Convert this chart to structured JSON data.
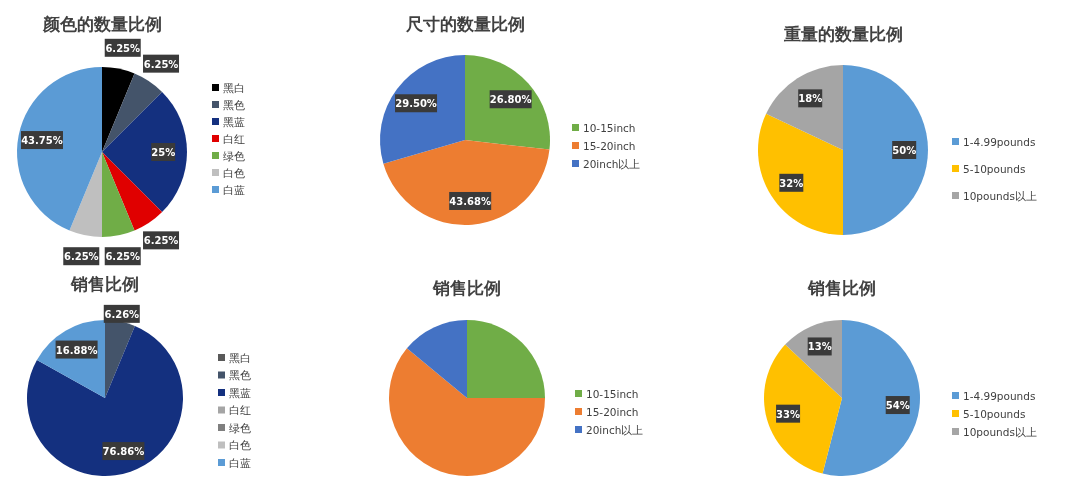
{
  "chart_data": [
    {
      "type": "pie",
      "title": "颜色的数量比例",
      "categories": [
        "黑白",
        "黑色",
        "黑蓝",
        "白红",
        "绿色",
        "白色",
        "白蓝"
      ],
      "values": [
        6.25,
        6.25,
        25,
        6.25,
        6.25,
        6.25,
        43.75
      ],
      "colors": [
        "#000000",
        "#44546a",
        "#14307f",
        "#e00000",
        "#70ad47",
        "#bfbfbf",
        "#5b9bd5"
      ],
      "value_labels": [
        "6.25%",
        "6.25%",
        "25%",
        "6.25%",
        "6.25%",
        "6.25%",
        "43.75%"
      ],
      "legend": "right"
    },
    {
      "type": "pie",
      "title": "尺寸的数量比例",
      "categories": [
        "10-15inch",
        "15-20inch",
        "20inch以上"
      ],
      "values": [
        26.8,
        43.68,
        29.5
      ],
      "colors": [
        "#70ad47",
        "#ed7d31",
        "#4472c4"
      ],
      "value_labels": [
        "26.80%",
        "43.68%",
        "29.50%"
      ],
      "legend": "right"
    },
    {
      "type": "pie",
      "title": "重量的数量比例",
      "categories": [
        "1-4.99pounds",
        "5-10pounds",
        "10pounds以上"
      ],
      "values": [
        50,
        32,
        18
      ],
      "colors": [
        "#5b9bd5",
        "#ffc000",
        "#a5a5a5"
      ],
      "value_labels": [
        "50%",
        "32%",
        "18%"
      ],
      "legend": "right"
    },
    {
      "type": "pie",
      "title": "销售比例",
      "categories": [
        "黑白",
        "黑色",
        "黑蓝",
        "白红",
        "绿色",
        "白色",
        "白蓝"
      ],
      "values": [
        0,
        6.26,
        76.86,
        0,
        0,
        0,
        16.88
      ],
      "colors": [
        "#595959",
        "#44546a",
        "#14307f",
        "#a5a5a5",
        "#7f7f7f",
        "#bfbfbf",
        "#5b9bd5"
      ],
      "value_labels": [
        null,
        "6.26%",
        "76.86%",
        null,
        null,
        null,
        "16.88%"
      ],
      "legend": "right"
    },
    {
      "type": "pie",
      "title": "销售比例",
      "categories": [
        "10-15inch",
        "15-20inch",
        "20inch以上"
      ],
      "values": [
        25,
        61,
        14
      ],
      "colors": [
        "#70ad47",
        "#ed7d31",
        "#4472c4"
      ],
      "legend": "right"
    },
    {
      "type": "pie",
      "title": "销售比例",
      "categories": [
        "1-4.99pounds",
        "5-10pounds",
        "10pounds以上"
      ],
      "values": [
        54,
        33,
        13
      ],
      "colors": [
        "#5b9bd5",
        "#ffc000",
        "#a5a5a5"
      ],
      "value_labels": [
        "54%",
        "33%",
        "13%"
      ],
      "legend": "right"
    }
  ]
}
